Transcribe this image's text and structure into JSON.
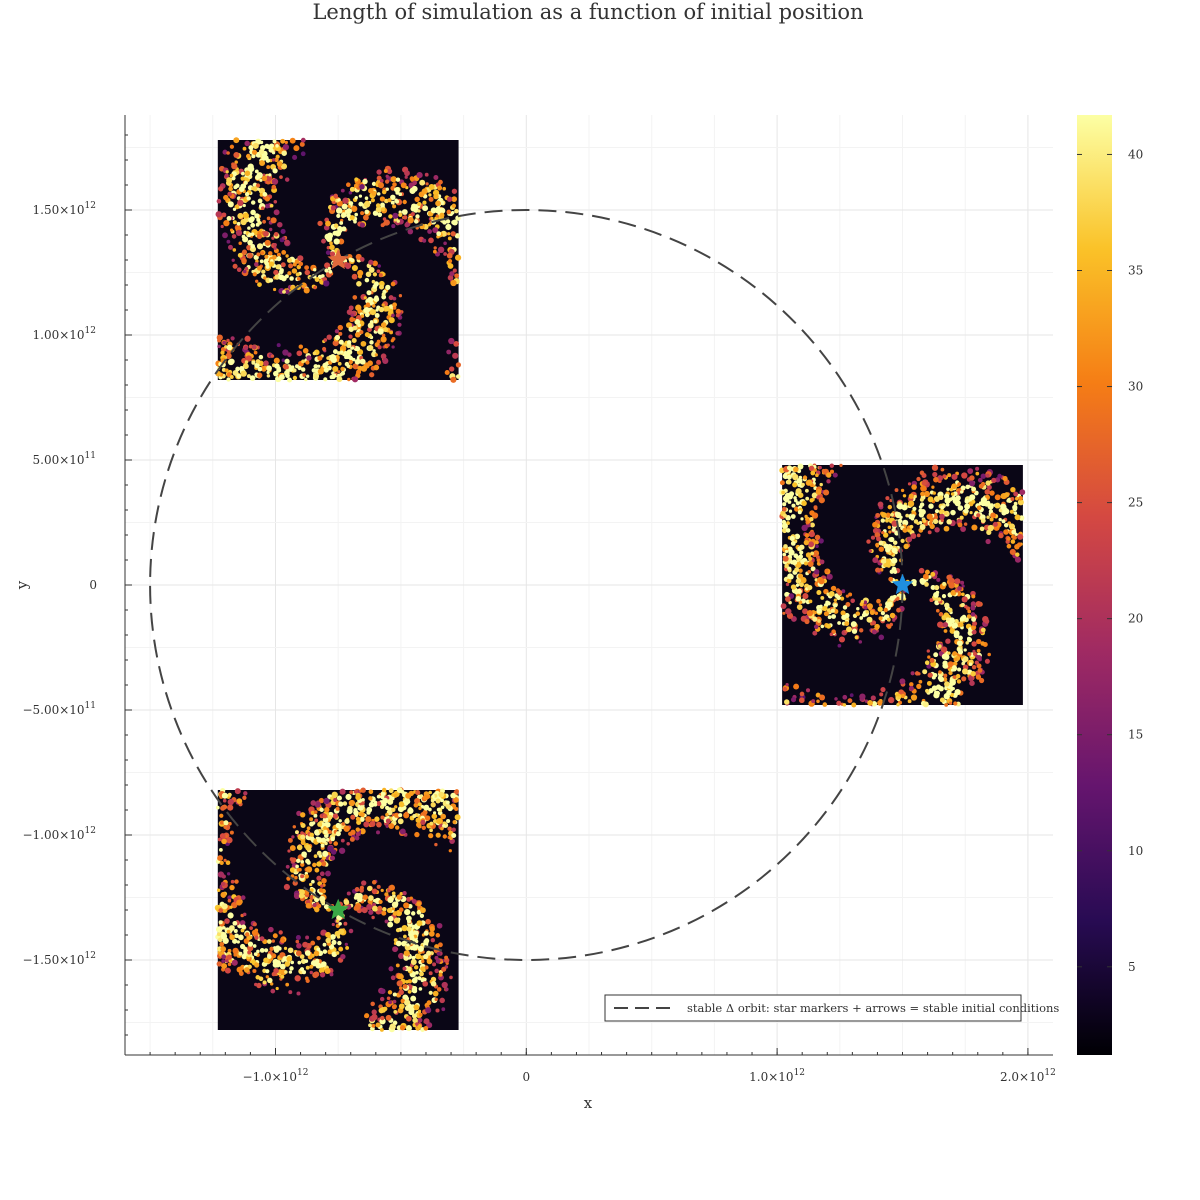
{
  "chart_data": {
    "type": "heatmap",
    "title": "Length of simulation as a function of initial position",
    "xlabel": "x",
    "ylabel": "y",
    "xlim": [
      -1600000000000.0,
      2100000000000.0
    ],
    "ylim": [
      -1880000000000.0,
      1880000000000.0
    ],
    "x_ticks": [
      {
        "value": -1000000000000.0,
        "label": "−1.0×10",
        "exp": "12"
      },
      {
        "value": 0,
        "label": "0",
        "exp": ""
      },
      {
        "value": 1000000000000.0,
        "label": "1.0×10",
        "exp": "12"
      },
      {
        "value": 2000000000000.0,
        "label": "2.0×10",
        "exp": "12"
      }
    ],
    "y_ticks": [
      {
        "value": 1500000000000.0,
        "label": "1.50×10",
        "exp": "12"
      },
      {
        "value": 1000000000000.0,
        "label": "1.00×10",
        "exp": "12"
      },
      {
        "value": 500000000000.0,
        "label": "5.00×10",
        "exp": "11"
      },
      {
        "value": 0,
        "label": "0",
        "exp": ""
      },
      {
        "value": -500000000000.0,
        "label": "−5.00×10",
        "exp": "11"
      },
      {
        "value": -1000000000000.0,
        "label": "−1.00×10",
        "exp": "12"
      },
      {
        "value": -1500000000000.0,
        "label": "−1.50×10",
        "exp": "12"
      }
    ],
    "grid": true,
    "colorbar": {
      "range": [
        1.2,
        41.7
      ],
      "ticks": [
        5,
        10,
        15,
        20,
        25,
        30,
        35,
        40
      ],
      "colormap": [
        "#000004",
        "#280b53",
        "#65156e",
        "#9f2a63",
        "#d44842",
        "#f57d15",
        "#fac228",
        "#fcffa4"
      ]
    },
    "orbit": {
      "radius": 1500000000000.0,
      "color": "#444444",
      "style": "dashed"
    },
    "regions": [
      {
        "center": [
          -750000000000.0,
          1300000000000.0
        ],
        "half_width": 480000000000.0,
        "marker_color": "#e06a3c",
        "spin": 1
      },
      {
        "center": [
          1500000000000.0,
          0.0
        ],
        "half_width": 480000000000.0,
        "marker_color": "#1f8fe0",
        "spin": 1
      },
      {
        "center": [
          -750000000000.0,
          -1300000000000.0
        ],
        "half_width": 480000000000.0,
        "marker_color": "#3aa845",
        "spin": 1
      }
    ],
    "legend": {
      "position": "bottom-right",
      "label": "stable Δ orbit: star markers + arrows = stable initial conditions"
    }
  }
}
